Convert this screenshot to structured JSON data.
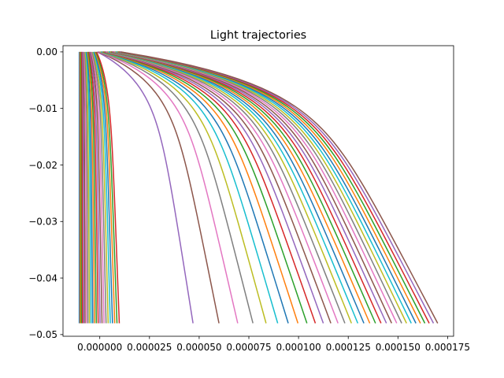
{
  "chart_data": {
    "type": "line",
    "title": "Light trajectories",
    "xlabel": "",
    "ylabel": "",
    "xlim": [
      -1.85e-05,
      0.000178
    ],
    "ylim": [
      -0.0503,
      0.0011
    ],
    "grid": false,
    "legend": "none",
    "x_tick_values": [
      0.0,
      2.5e-05,
      5e-05,
      7.5e-05,
      0.0001,
      0.000125,
      0.00015,
      0.000175
    ],
    "x_tick_labels": [
      "0.000000",
      "0.000025",
      "0.000050",
      "0.000075",
      "0.000100",
      "0.000125",
      "0.000150",
      "0.000175"
    ],
    "y_tick_values": [
      0.0,
      -0.01,
      -0.02,
      -0.03,
      -0.04,
      -0.05
    ],
    "y_tick_labels": [
      "0.00",
      "−0.01",
      "−0.02",
      "−0.03",
      "−0.04",
      "−0.05"
    ],
    "source_x_start": -1.03e-05,
    "source_x_end": 1.05e-05,
    "source_y": 0.0,
    "detector_y": -0.048,
    "focus_x": 0.00017,
    "ray_count": 56,
    "series_colors": [
      "#1f77b4",
      "#ff7f0e",
      "#2ca02c",
      "#d62728",
      "#9467bd",
      "#8c564b",
      "#e377c2",
      "#7f7f7f",
      "#bcbd22",
      "#17becf"
    ]
  }
}
